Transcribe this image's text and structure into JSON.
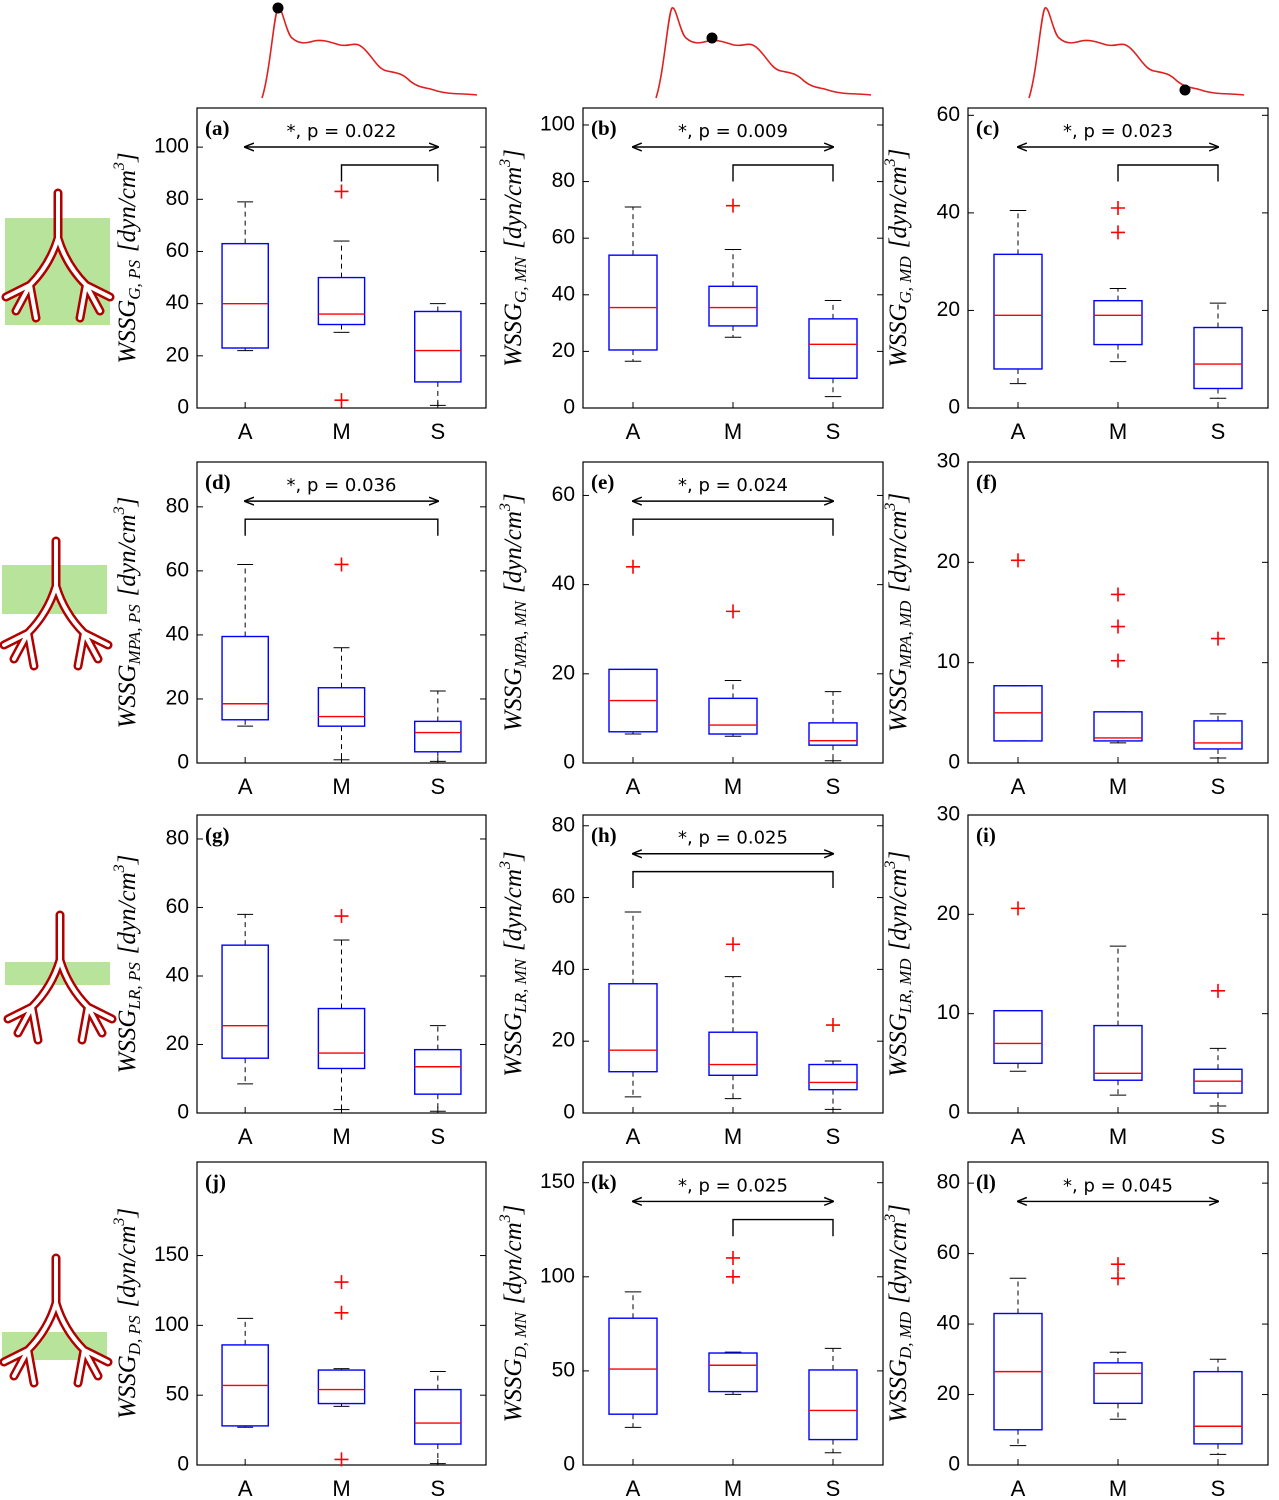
{
  "chart_data": [
    {
      "type": "box",
      "label": "(a)",
      "ylabel": {
        "symbol": "WSSG",
        "subscript": "G, PS",
        "unit": "[dyn/cm",
        "unit_exponent": "3",
        "unit_end": "]"
      },
      "categories": [
        "A",
        "M",
        "S"
      ],
      "ylim": [
        0,
        115
      ],
      "yticks": [
        0,
        20,
        40,
        60,
        80,
        100
      ],
      "box_color": "#0000ff",
      "median_color": "#ff0000",
      "outlier_color": "#ff0000",
      "boxes": [
        {
          "whisker_low": 22,
          "q1": 23,
          "median": 40,
          "q3": 63,
          "whisker_high": 79,
          "outliers": []
        },
        {
          "whisker_low": 29,
          "q1": 32,
          "median": 36,
          "q3": 50,
          "whisker_high": 64,
          "outliers": [
            83,
            3
          ]
        },
        {
          "whisker_low": 1,
          "q1": 10,
          "median": 22,
          "q3": 37,
          "whisker_high": 40,
          "outliers": []
        }
      ],
      "significance": {
        "label": "*, p = 0.022",
        "arrow": [
          "A",
          "S"
        ],
        "bracket": [
          "M",
          "S"
        ]
      }
    },
    {
      "type": "box",
      "label": "(b)",
      "ylabel": {
        "symbol": "WSSG",
        "subscript": "G, MN",
        "unit": "[dyn/cm",
        "unit_exponent": "3",
        "unit_end": "]"
      },
      "categories": [
        "A",
        "M",
        "S"
      ],
      "ylim": [
        0,
        106
      ],
      "yticks": [
        0,
        20,
        40,
        60,
        80,
        100
      ],
      "box_color": "#0000ff",
      "median_color": "#ff0000",
      "outlier_color": "#ff0000",
      "boxes": [
        {
          "whisker_low": 16.5,
          "q1": 20.5,
          "median": 35.5,
          "q3": 54,
          "whisker_high": 71,
          "outliers": []
        },
        {
          "whisker_low": 25,
          "q1": 29,
          "median": 35.5,
          "q3": 43,
          "whisker_high": 56,
          "outliers": [
            71.5
          ]
        },
        {
          "whisker_low": 4,
          "q1": 10.5,
          "median": 22.5,
          "q3": 31.5,
          "whisker_high": 38,
          "outliers": []
        }
      ],
      "significance": {
        "label": "*, p = 0.009",
        "arrow": [
          "A",
          "S"
        ],
        "bracket": [
          "M",
          "S"
        ]
      }
    },
    {
      "type": "box",
      "label": "(c)",
      "ylabel": {
        "symbol": "WSSG",
        "subscript": "G, MD",
        "unit": "[dyn/cm",
        "unit_exponent": "3",
        "unit_end": "]"
      },
      "categories": [
        "A",
        "M",
        "S"
      ],
      "ylim": [
        0,
        61.5
      ],
      "yticks": [
        0,
        20,
        40,
        60
      ],
      "box_color": "#0000ff",
      "median_color": "#ff0000",
      "outlier_color": "#ff0000",
      "boxes": [
        {
          "whisker_low": 5,
          "q1": 8,
          "median": 19,
          "q3": 31.5,
          "whisker_high": 40.5,
          "outliers": []
        },
        {
          "whisker_low": 9.5,
          "q1": 13,
          "median": 19,
          "q3": 22,
          "whisker_high": 24.5,
          "outliers": [
            41,
            36
          ]
        },
        {
          "whisker_low": 2,
          "q1": 4,
          "median": 9,
          "q3": 16.5,
          "whisker_high": 21.5,
          "outliers": []
        }
      ],
      "significance": {
        "label": "*, p = 0.023",
        "arrow": [
          "A",
          "S"
        ],
        "bracket": [
          "M",
          "S"
        ]
      }
    },
    {
      "type": "box",
      "label": "(d)",
      "ylabel": {
        "symbol": "WSSG",
        "subscript": "MPA, PS",
        "unit": "[dyn/cm",
        "unit_exponent": "3",
        "unit_end": "]"
      },
      "categories": [
        "A",
        "M",
        "S"
      ],
      "ylim": [
        0,
        94
      ],
      "yticks": [
        0,
        20,
        40,
        60,
        80
      ],
      "box_color": "#0000ff",
      "median_color": "#ff0000",
      "outlier_color": "#ff0000",
      "boxes": [
        {
          "whisker_low": 11.5,
          "q1": 13.5,
          "median": 18.5,
          "q3": 39.5,
          "whisker_high": 62,
          "outliers": []
        },
        {
          "whisker_low": 1,
          "q1": 11.5,
          "median": 14.5,
          "q3": 23.5,
          "whisker_high": 36,
          "outliers": [
            62
          ]
        },
        {
          "whisker_low": 0.5,
          "q1": 3.5,
          "median": 9.5,
          "q3": 13,
          "whisker_high": 22.5,
          "outliers": []
        }
      ],
      "significance": {
        "label": "*, p = 0.036",
        "arrow": [
          "A",
          "S"
        ],
        "bracket": [
          "A",
          "S"
        ]
      }
    },
    {
      "type": "box",
      "label": "(e)",
      "ylabel": {
        "symbol": "WSSG",
        "subscript": "MPA, MN",
        "unit": "[dyn/cm",
        "unit_exponent": "3",
        "unit_end": "]"
      },
      "categories": [
        "A",
        "M",
        "S"
      ],
      "ylim": [
        0,
        67.5
      ],
      "yticks": [
        0,
        20,
        40,
        60
      ],
      "box_color": "#0000ff",
      "median_color": "#ff0000",
      "outlier_color": "#ff0000",
      "boxes": [
        {
          "whisker_low": 6.5,
          "q1": 7,
          "median": 14,
          "q3": 21,
          "whisker_high": 21,
          "outliers": [
            44
          ]
        },
        {
          "whisker_low": 6,
          "q1": 6.5,
          "median": 8.5,
          "q3": 14.5,
          "whisker_high": 18.5,
          "outliers": [
            34
          ]
        },
        {
          "whisker_low": 0.5,
          "q1": 4,
          "median": 5,
          "q3": 9,
          "whisker_high": 16,
          "outliers": []
        }
      ],
      "significance": {
        "label": "*, p = 0.024",
        "arrow": [
          "A",
          "S"
        ],
        "bracket": [
          "A",
          "S"
        ]
      }
    },
    {
      "type": "box",
      "label": "(f)",
      "ylabel": {
        "symbol": "WSSG",
        "subscript": "MPA, MD",
        "unit": "[dyn/cm",
        "unit_exponent": "3",
        "unit_end": "]"
      },
      "categories": [
        "A",
        "M",
        "S"
      ],
      "ylim": [
        0,
        30
      ],
      "yticks": [
        0,
        10,
        20,
        30
      ],
      "box_color": "#0000ff",
      "median_color": "#ff0000",
      "outlier_color": "#ff0000",
      "boxes": [
        {
          "whisker_low": 2.2,
          "q1": 2.2,
          "median": 5,
          "q3": 7.7,
          "whisker_high": 7.7,
          "outliers": [
            20.2
          ]
        },
        {
          "whisker_low": 2,
          "q1": 2.2,
          "median": 2.5,
          "q3": 5.1,
          "whisker_high": 5.1,
          "outliers": [
            16.8,
            13.6,
            10.2
          ]
        },
        {
          "whisker_low": 0.5,
          "q1": 1.4,
          "median": 2,
          "q3": 4.2,
          "whisker_high": 4.9,
          "outliers": [
            12.4
          ]
        }
      ]
    },
    {
      "type": "box",
      "label": "(g)",
      "ylabel": {
        "symbol": "WSSG",
        "subscript": "LR, PS",
        "unit": "[dyn/cm",
        "unit_exponent": "3",
        "unit_end": "]"
      },
      "categories": [
        "A",
        "M",
        "S"
      ],
      "ylim": [
        0,
        87
      ],
      "yticks": [
        0,
        20,
        40,
        60,
        80
      ],
      "box_color": "#0000ff",
      "median_color": "#ff0000",
      "outlier_color": "#ff0000",
      "boxes": [
        {
          "whisker_low": 8.5,
          "q1": 16,
          "median": 25.5,
          "q3": 49,
          "whisker_high": 58,
          "outliers": []
        },
        {
          "whisker_low": 1,
          "q1": 13,
          "median": 17.5,
          "q3": 30.5,
          "whisker_high": 50.5,
          "outliers": [
            57.5
          ]
        },
        {
          "whisker_low": 0.5,
          "q1": 5.5,
          "median": 13.5,
          "q3": 18.5,
          "whisker_high": 25.5,
          "outliers": []
        }
      ]
    },
    {
      "type": "box",
      "label": "(h)",
      "ylabel": {
        "symbol": "WSSG",
        "subscript": "LR, MN",
        "unit": "[dyn/cm",
        "unit_exponent": "3",
        "unit_end": "]"
      },
      "categories": [
        "A",
        "M",
        "S"
      ],
      "ylim": [
        0,
        83
      ],
      "yticks": [
        0,
        20,
        40,
        60,
        80
      ],
      "box_color": "#0000ff",
      "median_color": "#ff0000",
      "outlier_color": "#ff0000",
      "boxes": [
        {
          "whisker_low": 4.5,
          "q1": 11.5,
          "median": 17.5,
          "q3": 36,
          "whisker_high": 56,
          "outliers": []
        },
        {
          "whisker_low": 4,
          "q1": 10.5,
          "median": 13.5,
          "q3": 22.5,
          "whisker_high": 38,
          "outliers": [
            47
          ]
        },
        {
          "whisker_low": 1,
          "q1": 6.5,
          "median": 8.5,
          "q3": 13.5,
          "whisker_high": 14.5,
          "outliers": [
            24.5
          ]
        }
      ],
      "significance": {
        "label": "*, p = 0.025",
        "arrow": [
          "A",
          "S"
        ],
        "bracket": [
          "A",
          "S"
        ]
      }
    },
    {
      "type": "box",
      "label": "(i)",
      "ylabel": {
        "symbol": "WSSG",
        "subscript": "LR, MD",
        "unit": "[dyn/cm",
        "unit_exponent": "3",
        "unit_end": "]"
      },
      "categories": [
        "A",
        "M",
        "S"
      ],
      "ylim": [
        0,
        30
      ],
      "yticks": [
        0,
        10,
        20,
        30
      ],
      "box_color": "#0000ff",
      "median_color": "#ff0000",
      "outlier_color": "#ff0000",
      "boxes": [
        {
          "whisker_low": 4.2,
          "q1": 5,
          "median": 7,
          "q3": 10.3,
          "whisker_high": 10.3,
          "outliers": [
            20.6
          ]
        },
        {
          "whisker_low": 1.8,
          "q1": 3.3,
          "median": 4,
          "q3": 8.8,
          "whisker_high": 16.8,
          "outliers": []
        },
        {
          "whisker_low": 0.7,
          "q1": 2,
          "median": 3.2,
          "q3": 4.4,
          "whisker_high": 6.5,
          "outliers": [
            12.3
          ]
        }
      ]
    },
    {
      "type": "box",
      "label": "(j)",
      "ylabel": {
        "symbol": "WSSG",
        "subscript": "D, PS",
        "unit": "[dyn/cm",
        "unit_exponent": "3",
        "unit_end": "]"
      },
      "categories": [
        "A",
        "M",
        "S"
      ],
      "ylim": [
        0,
        217
      ],
      "yticks": [
        0,
        50,
        100,
        150
      ],
      "box_color": "#0000ff",
      "median_color": "#ff0000",
      "outlier_color": "#ff0000",
      "boxes": [
        {
          "whisker_low": 27,
          "q1": 28,
          "median": 57,
          "q3": 86,
          "whisker_high": 105,
          "outliers": []
        },
        {
          "whisker_low": 42,
          "q1": 44,
          "median": 54,
          "q3": 68,
          "whisker_high": 69,
          "outliers": [
            131,
            109,
            4
          ]
        },
        {
          "whisker_low": 1,
          "q1": 15,
          "median": 30,
          "q3": 54,
          "whisker_high": 67,
          "outliers": []
        }
      ]
    },
    {
      "type": "box",
      "label": "(k)",
      "ylabel": {
        "symbol": "WSSG",
        "subscript": "D, MN",
        "unit": "[dyn/cm",
        "unit_exponent": "3",
        "unit_end": "]"
      },
      "categories": [
        "A",
        "M",
        "S"
      ],
      "ylim": [
        0,
        161
      ],
      "yticks": [
        0,
        50,
        100,
        150
      ],
      "box_color": "#0000ff",
      "median_color": "#ff0000",
      "outlier_color": "#ff0000",
      "boxes": [
        {
          "whisker_low": 20,
          "q1": 27,
          "median": 51,
          "q3": 78,
          "whisker_high": 92,
          "outliers": []
        },
        {
          "whisker_low": 37.5,
          "q1": 39,
          "median": 53,
          "q3": 59.5,
          "whisker_high": 60,
          "outliers": [
            110,
            100
          ]
        },
        {
          "whisker_low": 6.5,
          "q1": 13.5,
          "median": 29,
          "q3": 50.5,
          "whisker_high": 62,
          "outliers": []
        }
      ],
      "significance": {
        "label": "*, p = 0.025",
        "arrow": [
          "A",
          "S"
        ],
        "bracket": [
          "M",
          "S"
        ]
      }
    },
    {
      "type": "box",
      "label": "(l)",
      "ylabel": {
        "symbol": "WSSG",
        "subscript": "D, MD",
        "unit": "[dyn/cm",
        "unit_exponent": "3",
        "unit_end": "]"
      },
      "categories": [
        "A",
        "M",
        "S"
      ],
      "ylim": [
        0,
        86
      ],
      "yticks": [
        0,
        20,
        40,
        60,
        80
      ],
      "box_color": "#0000ff",
      "median_color": "#ff0000",
      "outlier_color": "#ff0000",
      "boxes": [
        {
          "whisker_low": 5.5,
          "q1": 10,
          "median": 26.5,
          "q3": 43,
          "whisker_high": 53,
          "outliers": []
        },
        {
          "whisker_low": 13,
          "q1": 17.5,
          "median": 26,
          "q3": 29,
          "whisker_high": 32,
          "outliers": [
            57,
            53
          ]
        },
        {
          "whisker_low": 3,
          "q1": 6,
          "median": 11,
          "q3": 26.5,
          "whisker_high": 30,
          "outliers": []
        }
      ],
      "significance": {
        "label": "*, p = 0.045",
        "arrow": [
          "A",
          "S"
        ]
      }
    }
  ]
}
